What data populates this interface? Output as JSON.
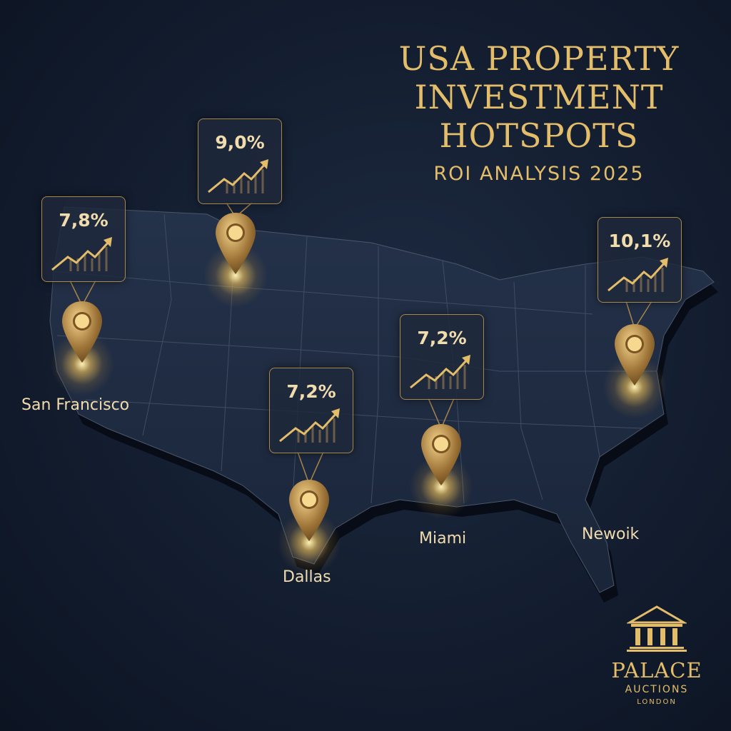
{
  "title_lines": [
    "USA PROPERTY",
    "INVESTMENT",
    "HOTSPOTS"
  ],
  "subtitle": "ROI ANALYSIS 2025",
  "colors": {
    "gold": "#e3bd6a",
    "background": "#131d2f",
    "map": "#1f2c42"
  },
  "hotspots": [
    {
      "roi": "7,8%",
      "city": "San Francisco",
      "icon": "trend-up-chart-icon"
    },
    {
      "roi": "9,0%",
      "city": "",
      "icon": "trend-up-chart-icon"
    },
    {
      "roi": "7,2%",
      "city": "Dallas",
      "icon": "trend-up-chart-icon"
    },
    {
      "roi": "7,2%",
      "city": "Miami",
      "icon": "trend-up-chart-icon"
    },
    {
      "roi": "10,1%",
      "city": "Newoik",
      "icon": "trend-up-chart-icon"
    }
  ],
  "logo": {
    "name": "PALACE",
    "line2": "AUCTIONS",
    "line3": "LONDON",
    "icon": "temple-icon"
  }
}
